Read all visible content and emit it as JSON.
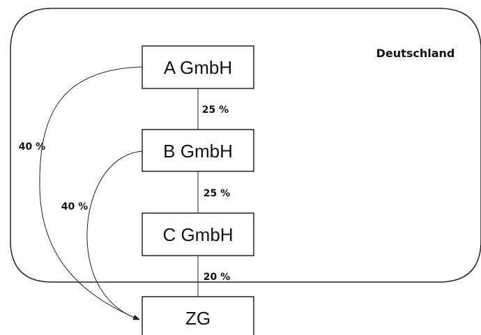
{
  "region": {
    "label": "Deutschland"
  },
  "entities": [
    {
      "id": "a",
      "label": "A GmbH"
    },
    {
      "id": "b",
      "label": "B GmbH"
    },
    {
      "id": "c",
      "label": "C GmbH"
    },
    {
      "id": "zg",
      "label": "ZG"
    }
  ],
  "ownership": [
    {
      "from": "A GmbH",
      "to": "B GmbH",
      "share": "25 %"
    },
    {
      "from": "B GmbH",
      "to": "C GmbH",
      "share": "25 %"
    },
    {
      "from": "C GmbH",
      "to": "ZG",
      "share": "20 %"
    },
    {
      "from": "A GmbH",
      "to": "ZG",
      "share": "40 %"
    },
    {
      "from": "B GmbH",
      "to": "ZG",
      "share": "40 %"
    }
  ],
  "colors": {
    "stroke": "#222222",
    "background": "#ffffff"
  }
}
